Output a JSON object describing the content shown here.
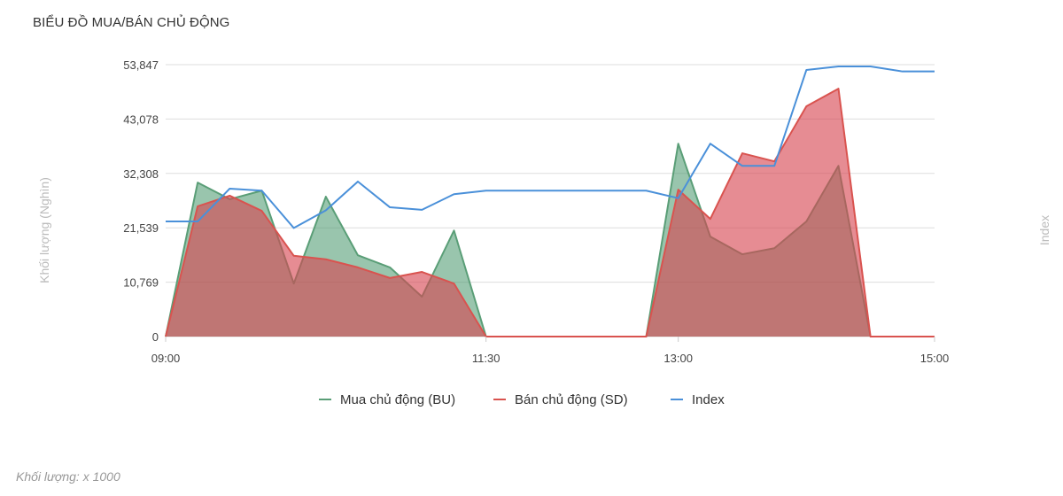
{
  "title": "BIỂU ĐỒ MUA/BÁN CHỦ ĐỘNG",
  "footnote": "Khối lượng: x 1000",
  "chart_data": {
    "type": "area",
    "ylabel": "Khối lượng (Nghìn)",
    "y2label": "Index",
    "ylim": [
      0,
      53847
    ],
    "yticks": [
      "0",
      "10,769",
      "21,539",
      "32,308",
      "43,078",
      "53,847"
    ],
    "ytick_values": [
      0,
      10769,
      21539,
      32308,
      43078,
      53847
    ],
    "xlim": [
      "09:00",
      "15:00"
    ],
    "xticks": [
      "09:00",
      "11:30",
      "13:00",
      "15:00"
    ],
    "grid": true,
    "legend_position": "bottom",
    "x": [
      "09:00",
      "09:15",
      "09:30",
      "09:45",
      "10:00",
      "10:15",
      "10:30",
      "10:45",
      "11:00",
      "11:15",
      "11:30",
      "11:45",
      "12:00",
      "12:15",
      "12:30",
      "12:45",
      "13:00",
      "13:15",
      "13:30",
      "13:45",
      "14:00",
      "14:15",
      "14:30",
      "14:45",
      "15:00"
    ],
    "series": [
      {
        "name": "Mua chủ động (BU)",
        "type": "area",
        "color": "#5a9e77",
        "values": [
          0,
          30500,
          27200,
          28900,
          10500,
          27700,
          16100,
          13700,
          7900,
          21000,
          0,
          0,
          0,
          0,
          0,
          0,
          38200,
          19800,
          16300,
          17500,
          22800,
          33800,
          0,
          0,
          0
        ]
      },
      {
        "name": "Bán chủ động (SD)",
        "type": "area",
        "color": "#d9534f",
        "values": [
          0,
          25800,
          27900,
          24900,
          16000,
          15300,
          13700,
          11600,
          12800,
          10500,
          0,
          0,
          0,
          0,
          0,
          0,
          29100,
          23300,
          36300,
          34700,
          45600,
          49100,
          0,
          0,
          0
        ]
      },
      {
        "name": "Index",
        "type": "line",
        "axis": "right",
        "color": "#4a90d9",
        "values": [
          22800,
          22800,
          29300,
          28900,
          21500,
          25000,
          30700,
          25600,
          25100,
          28200,
          28900,
          28900,
          28900,
          28900,
          28900,
          28900,
          27400,
          38200,
          33800,
          33800,
          52800,
          53500,
          53500,
          52500,
          52500
        ]
      }
    ]
  }
}
